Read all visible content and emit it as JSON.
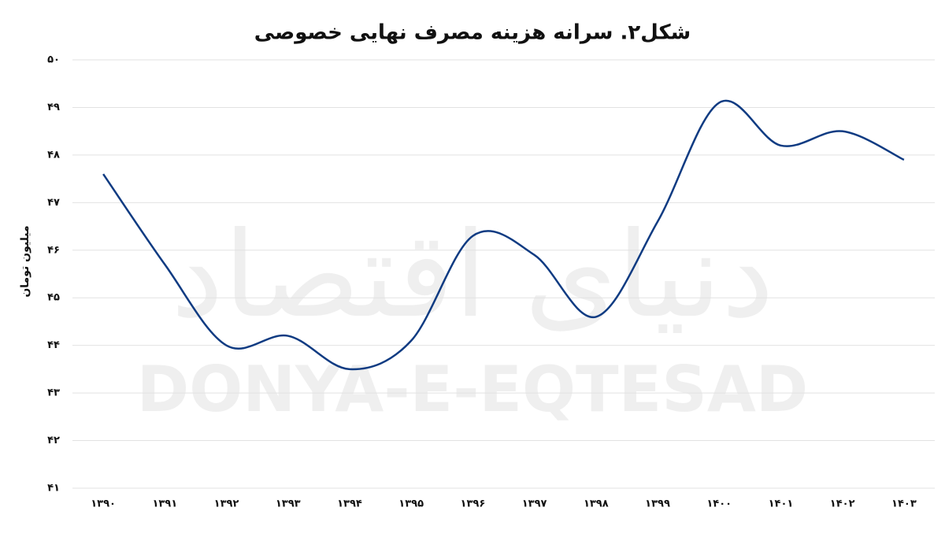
{
  "chart_data": {
    "type": "line",
    "title": "شکل۲. سرانه هزینه مصرف نهایی خصوصی",
    "y_label": "میلیون تومان",
    "watermark": {
      "persian": "دنیای اقتصاد",
      "latin": "DONYA-E-EQTESAD"
    },
    "categories": [
      "۱۳۹۰",
      "۱۳۹۱",
      "۱۳۹۲",
      "۱۳۹۳",
      "۱۳۹۴",
      "۱۳۹۵",
      "۱۳۹۶",
      "۱۳۹۷",
      "۱۳۹۸",
      "۱۳۹۹",
      "۱۴۰۰",
      "۱۴۰۱",
      "۱۴۰۲",
      "۱۴۰۳"
    ],
    "series": [
      {
        "color": "#0f3b82",
        "values": [
          47.6,
          45.7,
          44.0,
          44.2,
          43.5,
          44.1,
          46.3,
          45.9,
          44.6,
          46.6,
          49.1,
          48.2,
          48.5,
          47.9
        ]
      }
    ],
    "ylim": [
      41,
      50
    ],
    "yticks": [
      {
        "value": 41,
        "label": "۴۱"
      },
      {
        "value": 42,
        "label": "۴۲"
      },
      {
        "value": 43,
        "label": "۴۳"
      },
      {
        "value": 44,
        "label": "۴۴"
      },
      {
        "value": 45,
        "label": "۴۵"
      },
      {
        "value": 46,
        "label": "۴۶"
      },
      {
        "value": 47,
        "label": "۴۷"
      },
      {
        "value": 48,
        "label": "۴۸"
      },
      {
        "value": 49,
        "label": "۴۹"
      },
      {
        "value": 50,
        "label": "۵۰"
      }
    ],
    "grid": true
  }
}
